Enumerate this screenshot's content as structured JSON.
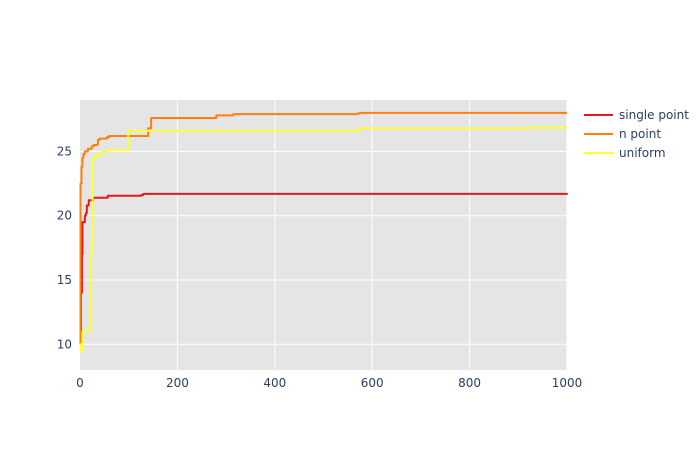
{
  "chart_data": {
    "type": "line",
    "title": "",
    "xlabel": "",
    "ylabel": "",
    "xlim": [
      0,
      1000
    ],
    "ylim": [
      8,
      29
    ],
    "x_ticks": [
      0,
      200,
      400,
      600,
      800,
      1000
    ],
    "y_ticks": [
      10,
      15,
      20,
      25
    ],
    "grid": true,
    "legend_position": "right",
    "background_color": "#e5e5e5",
    "series": [
      {
        "name": "single point",
        "color": "#e31a1c",
        "points": [
          [
            0,
            10.5
          ],
          [
            2,
            14
          ],
          [
            4,
            17
          ],
          [
            5,
            19.5
          ],
          [
            9,
            19.5
          ],
          [
            10,
            20
          ],
          [
            12,
            20.2
          ],
          [
            14,
            20.8
          ],
          [
            17,
            20.8
          ],
          [
            18,
            21.2
          ],
          [
            25,
            21.2
          ],
          [
            27,
            21.4
          ],
          [
            55,
            21.4
          ],
          [
            57,
            21.55
          ],
          [
            125,
            21.6
          ],
          [
            130,
            21.7
          ],
          [
            570,
            21.7
          ],
          [
            1000,
            21.75
          ]
        ]
      },
      {
        "name": "n point",
        "color": "#ff7f0e",
        "points": [
          [
            0,
            10
          ],
          [
            1,
            22.5
          ],
          [
            3,
            23.8
          ],
          [
            5,
            24.5
          ],
          [
            7,
            24.8
          ],
          [
            10,
            25.0
          ],
          [
            16,
            25.2
          ],
          [
            24,
            25.4
          ],
          [
            28,
            25.5
          ],
          [
            36,
            25.6
          ],
          [
            37,
            25.9
          ],
          [
            40,
            26.0
          ],
          [
            55,
            26.1
          ],
          [
            60,
            26.2
          ],
          [
            138,
            26.2
          ],
          [
            140,
            26.8
          ],
          [
            145,
            26.8
          ],
          [
            146,
            27.6
          ],
          [
            278,
            27.6
          ],
          [
            280,
            27.8
          ],
          [
            315,
            27.9
          ],
          [
            570,
            27.95
          ],
          [
            575,
            28.0
          ],
          [
            1000,
            28.0
          ]
        ]
      },
      {
        "name": "uniform",
        "color": "#ffff33",
        "points": [
          [
            0,
            10
          ],
          [
            2,
            9.5
          ],
          [
            4,
            9.8
          ],
          [
            5,
            11
          ],
          [
            20,
            11.2
          ],
          [
            21,
            17
          ],
          [
            24,
            18
          ],
          [
            26,
            24.5
          ],
          [
            30,
            24.6
          ],
          [
            38,
            24.8
          ],
          [
            45,
            25.0
          ],
          [
            60,
            25.1
          ],
          [
            97,
            25.1
          ],
          [
            99,
            26.6
          ],
          [
            145,
            26.6
          ],
          [
            148,
            26.6
          ],
          [
            570,
            26.7
          ],
          [
            575,
            26.8
          ],
          [
            920,
            26.85
          ],
          [
            1000,
            26.85
          ]
        ]
      }
    ]
  }
}
